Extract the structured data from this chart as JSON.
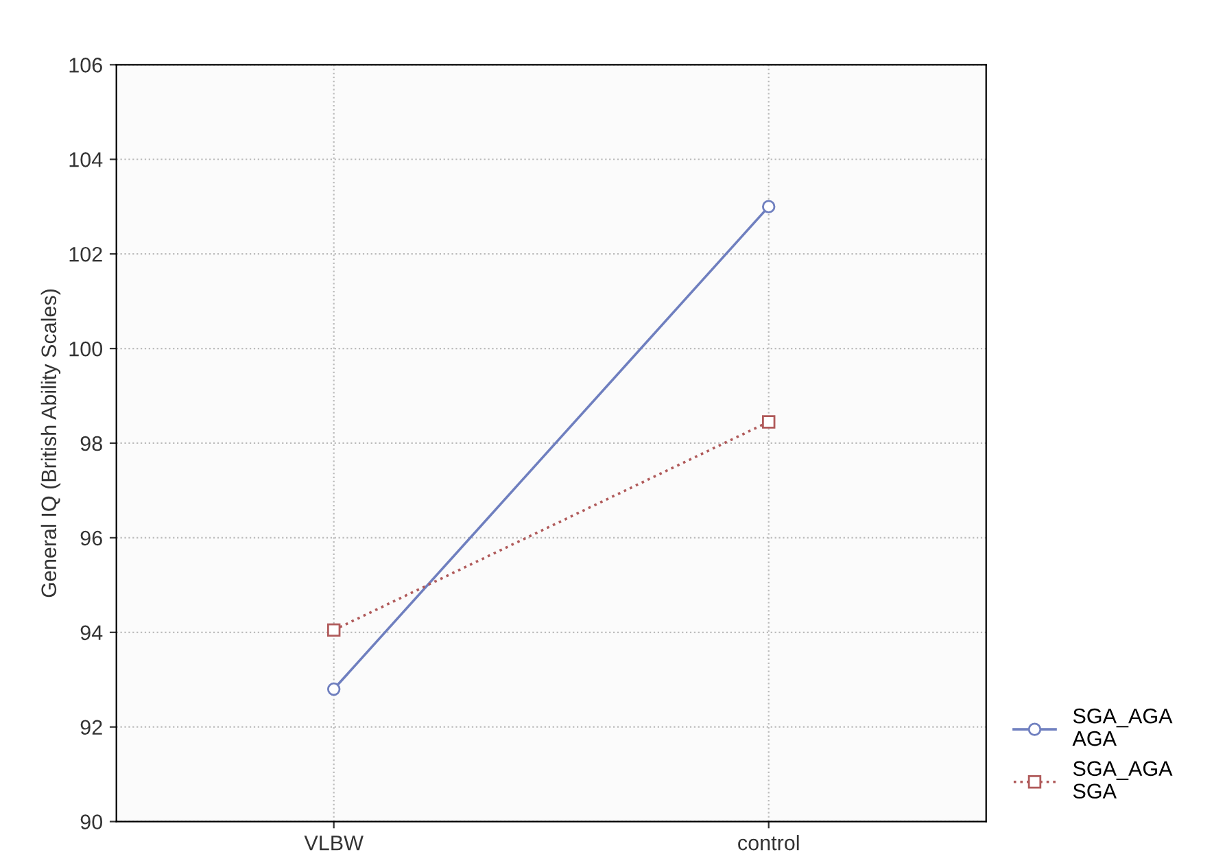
{
  "chart_data": {
    "type": "line",
    "ylabel": "General IQ (British Ability Scales)",
    "categories": [
      "VLBW",
      "control"
    ],
    "series": [
      {
        "name": "SGA_AGA\nAGA",
        "color": "#6f7fbf",
        "values": [
          92.8,
          103.0
        ],
        "marker": "circle",
        "line_style": "solid"
      },
      {
        "name": "SGA_AGA\nSGA",
        "color": "#b05a5a",
        "values": [
          94.05,
          98.45
        ],
        "marker": "square",
        "line_style": "dotted"
      }
    ],
    "ylim": [
      90,
      106
    ],
    "yticks": [
      90,
      92,
      94,
      96,
      98,
      100,
      102,
      104,
      106
    ],
    "grid": true,
    "legend": "right"
  }
}
